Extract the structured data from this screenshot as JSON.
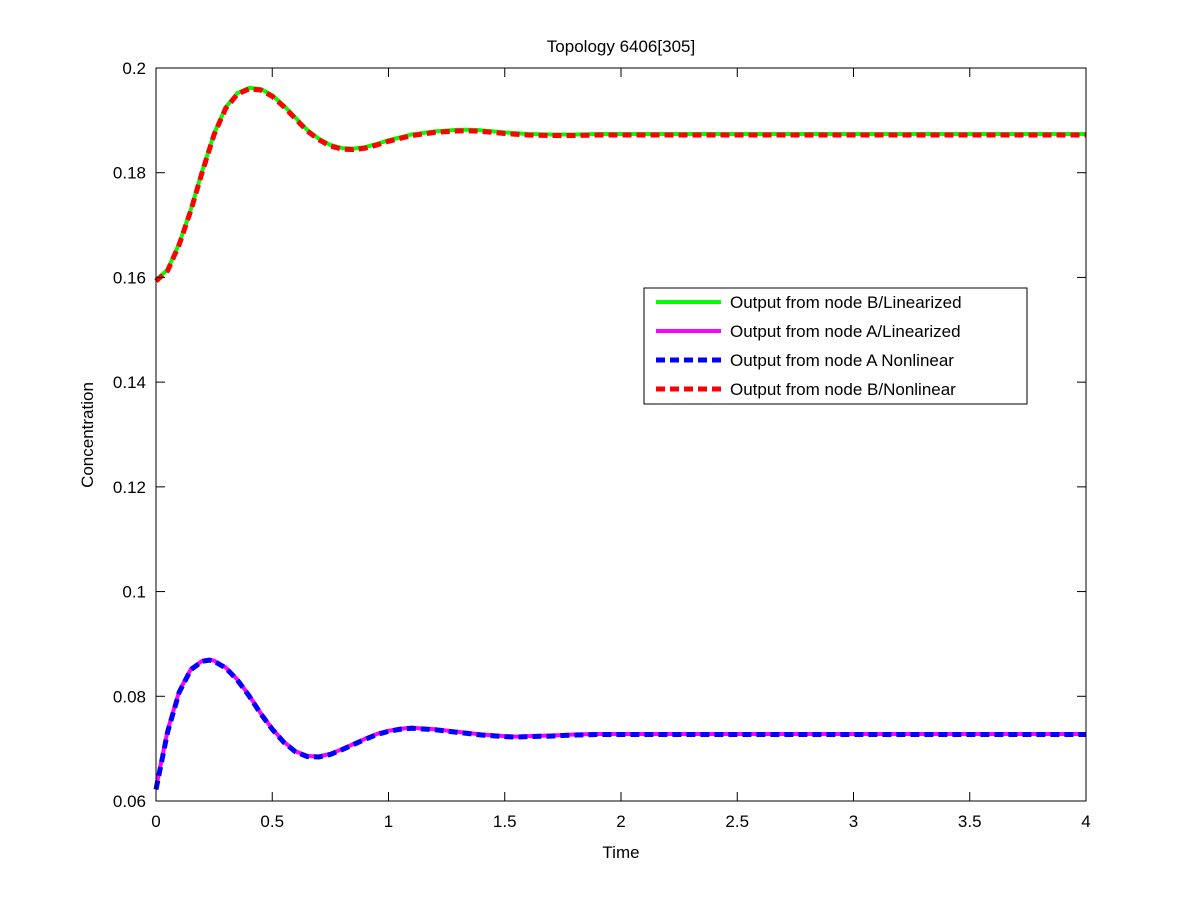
{
  "chart_data": {
    "type": "line",
    "title": "Topology 6406[305]",
    "xlabel": "Time",
    "ylabel": "Concentration",
    "xlim": [
      0,
      4
    ],
    "ylim": [
      0.06,
      0.2
    ],
    "xticks": [
      0,
      0.5,
      1,
      1.5,
      2,
      2.5,
      3,
      3.5,
      4
    ],
    "xtick_labels": [
      "0",
      "0.5",
      "1",
      "1.5",
      "2",
      "2.5",
      "3",
      "3.5",
      "4"
    ],
    "yticks": [
      0.06,
      0.08,
      0.1,
      0.12,
      0.14,
      0.16,
      0.18,
      0.2
    ],
    "ytick_labels": [
      "0.06",
      "0.08",
      "0.1",
      "0.12",
      "0.14",
      "0.16",
      "0.18",
      "0.2"
    ],
    "grid": false,
    "legend_position": "center-right",
    "series": [
      {
        "name": "Output from node B/Linearized",
        "color": "#00ff00",
        "style": "solid",
        "x": [
          0,
          0.05,
          0.1,
          0.15,
          0.2,
          0.25,
          0.3,
          0.35,
          0.4,
          0.45,
          0.5,
          0.55,
          0.6,
          0.65,
          0.7,
          0.75,
          0.8,
          0.85,
          0.9,
          0.95,
          1.0,
          1.1,
          1.2,
          1.3,
          1.35,
          1.4,
          1.5,
          1.6,
          1.7,
          1.8,
          1.9,
          2.0,
          2.5,
          3.0,
          3.5,
          4.0
        ],
        "y": [
          0.1595,
          0.1615,
          0.1665,
          0.173,
          0.1805,
          0.1875,
          0.1925,
          0.1952,
          0.1962,
          0.196,
          0.1948,
          0.1928,
          0.1905,
          0.1882,
          0.1865,
          0.1853,
          0.1847,
          0.1846,
          0.1849,
          0.1855,
          0.1862,
          0.1873,
          0.1879,
          0.1882,
          0.1882,
          0.1881,
          0.1877,
          0.1874,
          0.1873,
          0.1873,
          0.1874,
          0.1874,
          0.1874,
          0.1874,
          0.1874,
          0.1874
        ]
      },
      {
        "name": "Output from node A/Linearized",
        "color": "#ff00ff",
        "style": "solid",
        "x": [
          0,
          0.025,
          0.05,
          0.1,
          0.15,
          0.2,
          0.23,
          0.25,
          0.3,
          0.35,
          0.4,
          0.45,
          0.5,
          0.55,
          0.6,
          0.65,
          0.7,
          0.75,
          0.8,
          0.85,
          0.9,
          0.95,
          1.0,
          1.05,
          1.1,
          1.2,
          1.3,
          1.4,
          1.5,
          1.55,
          1.6,
          1.7,
          1.8,
          1.9,
          2.0,
          2.5,
          3.0,
          3.5,
          4.0
        ],
        "y": [
          0.0625,
          0.068,
          0.0735,
          0.081,
          0.0852,
          0.0868,
          0.087,
          0.0868,
          0.0855,
          0.0832,
          0.0802,
          0.0768,
          0.0738,
          0.0713,
          0.0695,
          0.0686,
          0.0685,
          0.069,
          0.0699,
          0.0709,
          0.0719,
          0.0728,
          0.0734,
          0.0738,
          0.074,
          0.0737,
          0.0732,
          0.0727,
          0.0724,
          0.0723,
          0.0724,
          0.0725,
          0.0727,
          0.0728,
          0.0728,
          0.0728,
          0.0728,
          0.0728,
          0.0728
        ]
      },
      {
        "name": "Output from node A Nonlinear",
        "color": "#0000ff",
        "style": "dashed",
        "x": [
          0,
          0.025,
          0.05,
          0.1,
          0.15,
          0.2,
          0.23,
          0.25,
          0.3,
          0.35,
          0.4,
          0.45,
          0.5,
          0.55,
          0.6,
          0.65,
          0.7,
          0.75,
          0.8,
          0.85,
          0.9,
          0.95,
          1.0,
          1.05,
          1.1,
          1.2,
          1.3,
          1.4,
          1.5,
          1.55,
          1.6,
          1.7,
          1.8,
          1.9,
          2.0,
          2.5,
          3.0,
          3.5,
          4.0
        ],
        "y": [
          0.0622,
          0.0677,
          0.0732,
          0.0808,
          0.0851,
          0.0867,
          0.0869,
          0.0867,
          0.0854,
          0.0831,
          0.0801,
          0.0767,
          0.0737,
          0.0712,
          0.0694,
          0.0685,
          0.0684,
          0.0689,
          0.0698,
          0.0708,
          0.0718,
          0.0727,
          0.0733,
          0.0737,
          0.0739,
          0.0736,
          0.0731,
          0.0726,
          0.0723,
          0.0722,
          0.0723,
          0.0724,
          0.0726,
          0.0727,
          0.0727,
          0.0727,
          0.0727,
          0.0727,
          0.0727
        ]
      },
      {
        "name": "Output from node B/Nonlinear",
        "color": "#ff0000",
        "style": "dashed",
        "x": [
          0,
          0.05,
          0.1,
          0.15,
          0.2,
          0.25,
          0.3,
          0.35,
          0.4,
          0.45,
          0.5,
          0.55,
          0.6,
          0.65,
          0.7,
          0.75,
          0.8,
          0.85,
          0.9,
          0.95,
          1.0,
          1.1,
          1.2,
          1.3,
          1.35,
          1.4,
          1.5,
          1.6,
          1.7,
          1.8,
          1.9,
          2.0,
          2.5,
          3.0,
          3.5,
          4.0
        ],
        "y": [
          0.1593,
          0.1613,
          0.1663,
          0.1728,
          0.1803,
          0.1873,
          0.1923,
          0.195,
          0.196,
          0.1958,
          0.1946,
          0.1926,
          0.1903,
          0.188,
          0.1863,
          0.1851,
          0.1845,
          0.1844,
          0.1847,
          0.1853,
          0.186,
          0.1871,
          0.1877,
          0.188,
          0.188,
          0.1879,
          0.1875,
          0.1872,
          0.1871,
          0.1871,
          0.1872,
          0.1872,
          0.1872,
          0.1872,
          0.1872,
          0.1872
        ]
      }
    ]
  }
}
